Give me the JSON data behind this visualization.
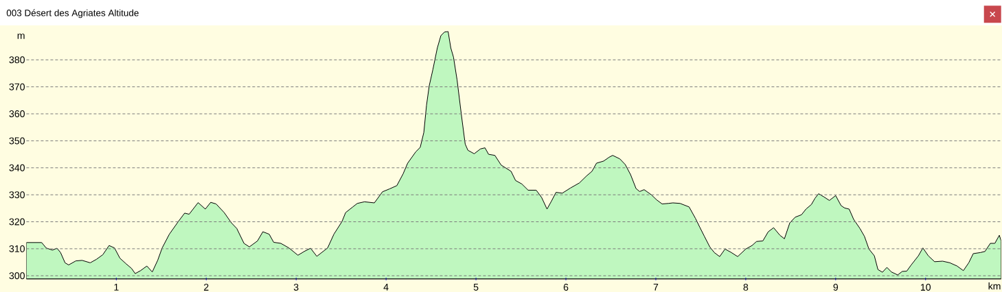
{
  "chart_data": {
    "type": "area",
    "title": "003 Désert des Agriates Altitude",
    "xlabel": "km",
    "ylabel": "m",
    "x": [
      0.0,
      0.09,
      0.17,
      0.22,
      0.29,
      0.34,
      0.38,
      0.43,
      0.47,
      0.55,
      0.62,
      0.71,
      0.78,
      0.85,
      0.92,
      0.98,
      1.04,
      1.11,
      1.17,
      1.21,
      1.27,
      1.34,
      1.4,
      1.46,
      1.51,
      1.59,
      1.69,
      1.76,
      1.81,
      1.91,
      1.99,
      2.05,
      2.11,
      2.2,
      2.28,
      2.34,
      2.42,
      2.48,
      2.57,
      2.63,
      2.7,
      2.75,
      2.83,
      2.92,
      3.02,
      3.09,
      3.16,
      3.23,
      3.35,
      3.42,
      3.51,
      3.55,
      3.63,
      3.68,
      3.76,
      3.87,
      3.96,
      4.04,
      4.12,
      4.19,
      4.24,
      4.33,
      4.38,
      4.42,
      4.45,
      4.48,
      4.52,
      4.57,
      4.61,
      4.65,
      4.69,
      4.72,
      4.75,
      4.79,
      4.84,
      4.88,
      4.91,
      4.98,
      5.05,
      5.1,
      5.14,
      5.21,
      5.28,
      5.39,
      5.44,
      5.51,
      5.58,
      5.67,
      5.73,
      5.79,
      5.84,
      5.89,
      5.96,
      6.05,
      6.15,
      6.23,
      6.29,
      6.34,
      6.42,
      6.48,
      6.52,
      6.6,
      6.66,
      6.72,
      6.78,
      6.82,
      6.87,
      6.95,
      7.01,
      7.07,
      7.14,
      7.19,
      7.27,
      7.37,
      7.44,
      7.49,
      7.54,
      7.6,
      7.65,
      7.71,
      7.77,
      7.84,
      7.91,
      8.0,
      8.07,
      8.12,
      8.19,
      8.25,
      8.31,
      8.38,
      8.43,
      8.49,
      8.55,
      8.62,
      8.67,
      8.73,
      8.77,
      8.81,
      8.87,
      8.93,
      9.0,
      9.06,
      9.1,
      9.15,
      9.2,
      9.27,
      9.32,
      9.37,
      9.43,
      9.47,
      9.52,
      9.57,
      9.62,
      9.69,
      9.74,
      9.79,
      9.84,
      9.92,
      9.97,
      10.03,
      10.1,
      10.19,
      10.27,
      10.35,
      10.42,
      10.48,
      10.53,
      10.61,
      10.66,
      10.72,
      10.77,
      10.82,
      10.84
    ],
    "values": [
      312.3,
      312.3,
      312.3,
      310.3,
      309.5,
      310.2,
      308.6,
      304.8,
      304.0,
      305.5,
      305.7,
      304.8,
      306.1,
      307.8,
      311.2,
      310.3,
      306.5,
      304.4,
      302.7,
      300.8,
      301.9,
      303.6,
      301.4,
      305.7,
      310.3,
      315.4,
      320.1,
      323.2,
      322.8,
      327.1,
      324.7,
      327.2,
      326.6,
      323.4,
      319.6,
      317.5,
      312.0,
      310.7,
      312.9,
      316.3,
      315.4,
      312.4,
      312.0,
      310.3,
      307.6,
      309.0,
      310.2,
      307.2,
      310.3,
      315.4,
      320.1,
      323.4,
      325.5,
      326.8,
      327.4,
      327.0,
      331.1,
      332.2,
      333.4,
      337.8,
      341.7,
      345.9,
      347.6,
      353.1,
      363.2,
      370.4,
      376.3,
      384.4,
      389.0,
      390.3,
      390.5,
      384.4,
      381.0,
      372.5,
      359.0,
      348.8,
      346.5,
      345.2,
      347.0,
      347.4,
      345.0,
      344.6,
      341.0,
      338.7,
      335.3,
      334.0,
      331.7,
      331.7,
      329.0,
      324.7,
      327.7,
      330.9,
      330.6,
      332.5,
      334.4,
      337.0,
      338.7,
      341.7,
      342.5,
      343.9,
      344.6,
      343.3,
      341.2,
      337.4,
      332.3,
      331.2,
      331.9,
      330.0,
      328.1,
      326.6,
      326.8,
      327.0,
      326.8,
      325.5,
      321.3,
      317.9,
      314.6,
      310.7,
      308.6,
      307.1,
      309.9,
      308.6,
      307.1,
      309.9,
      311.2,
      312.7,
      312.9,
      316.3,
      317.8,
      315.0,
      313.7,
      319.6,
      321.7,
      322.6,
      324.7,
      326.4,
      328.7,
      330.4,
      329.2,
      327.9,
      329.7,
      326.0,
      325.1,
      324.7,
      320.9,
      317.5,
      314.6,
      309.9,
      307.4,
      302.3,
      301.3,
      303.1,
      301.4,
      300.3,
      301.6,
      301.7,
      304.0,
      307.4,
      310.3,
      307.4,
      305.2,
      305.4,
      304.8,
      303.6,
      301.9,
      304.8,
      308.2,
      308.6,
      309.0,
      312.0,
      312.0,
      315.0,
      312.9
    ],
    "color": "#bff7bf",
    "xlim": [
      0,
      10.84
    ],
    "ylim": [
      298.8,
      392.7
    ],
    "xticks": [
      1,
      2,
      3,
      4,
      5,
      6,
      7,
      8,
      9,
      10
    ],
    "yticks": [
      300,
      310,
      320,
      330,
      340,
      350,
      360,
      370,
      380
    ],
    "grid": "y"
  }
}
